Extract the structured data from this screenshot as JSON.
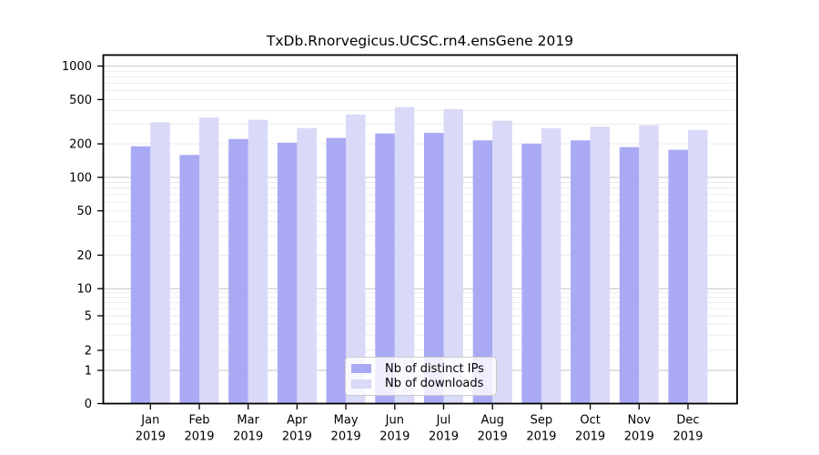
{
  "title": "TxDb.Rnorvegicus.UCSC.rn4.ensGene 2019",
  "chart_data": {
    "type": "bar",
    "title": "TxDb.Rnorvegicus.UCSC.rn4.ensGene 2019",
    "categories": [
      "Jan 2019",
      "Feb 2019",
      "Mar 2019",
      "Apr 2019",
      "May 2019",
      "Jun 2019",
      "Jul 2019",
      "Aug 2019",
      "Sep 2019",
      "Oct 2019",
      "Nov 2019",
      "Dec 2019"
    ],
    "series": [
      {
        "name": "Nb of distinct IPs",
        "color": "#a9a9f4",
        "values": [
          190,
          159,
          221,
          205,
          226,
          248,
          251,
          215,
          201,
          215,
          187,
          177
        ]
      },
      {
        "name": "Nb of downloads",
        "color": "#d9d9f8",
        "values": [
          313,
          344,
          329,
          277,
          368,
          428,
          410,
          323,
          276,
          286,
          294,
          267
        ]
      }
    ],
    "xlabel": "",
    "ylabel": "",
    "yticks": [
      0,
      1,
      2,
      5,
      10,
      20,
      50,
      100,
      200,
      500,
      1000
    ],
    "ylim": [
      0,
      1280
    ],
    "yscale": "log-like with 0 baseline",
    "grid": "horizontal log minor + major gridlines",
    "legend_position": "inside bottom-center",
    "colors": {
      "major_grid": "#c3c3c3",
      "minor_grid": "#e9e9ee",
      "axis": "#000000",
      "background": "#ffffff"
    }
  }
}
